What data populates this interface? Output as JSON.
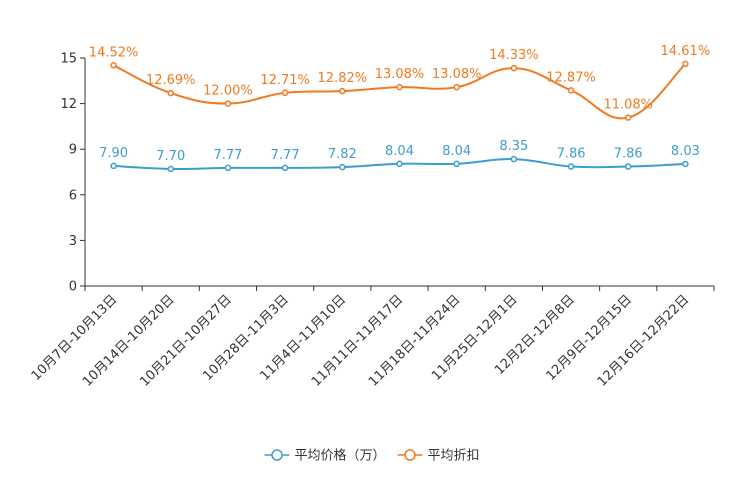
{
  "chart_data": {
    "type": "line",
    "categories": [
      "10月7日-10月13日",
      "10月14日-10月20日",
      "10月21日-10月27日",
      "10月28日-11月3日",
      "11月4日-11月10日",
      "11月11日-11月17日",
      "11月18日-11月24日",
      "11月25日-12月1日",
      "12月2日-12月8日",
      "12月9日-12月15日",
      "12月16日-12月22日"
    ],
    "ylim": [
      0,
      15
    ],
    "yticks": [
      "0",
      "3",
      "6",
      "9",
      "12",
      "15"
    ],
    "series": [
      {
        "name": "平均价格（万）",
        "color": "#3c9dd0",
        "values": [
          7.9,
          7.7,
          7.77,
          7.77,
          7.82,
          8.04,
          8.04,
          8.35,
          7.86,
          7.86,
          8.03
        ],
        "labels": [
          "7.90",
          "7.70",
          "7.77",
          "7.77",
          "7.82",
          "8.04",
          "8.04",
          "8.35",
          "7.86",
          "7.86",
          "8.03"
        ]
      },
      {
        "name": "平均折扣",
        "color": "#f07a22",
        "values": [
          14.52,
          12.69,
          12.0,
          12.71,
          12.82,
          13.08,
          13.08,
          14.33,
          12.87,
          11.08,
          14.61
        ],
        "labels": [
          "14.52%",
          "12.69%",
          "12.00%",
          "12.71%",
          "12.82%",
          "13.08%",
          "13.08%",
          "14.33%",
          "12.87%",
          "11.08%",
          "14.61%"
        ]
      }
    ],
    "legend": "bottom-center"
  }
}
